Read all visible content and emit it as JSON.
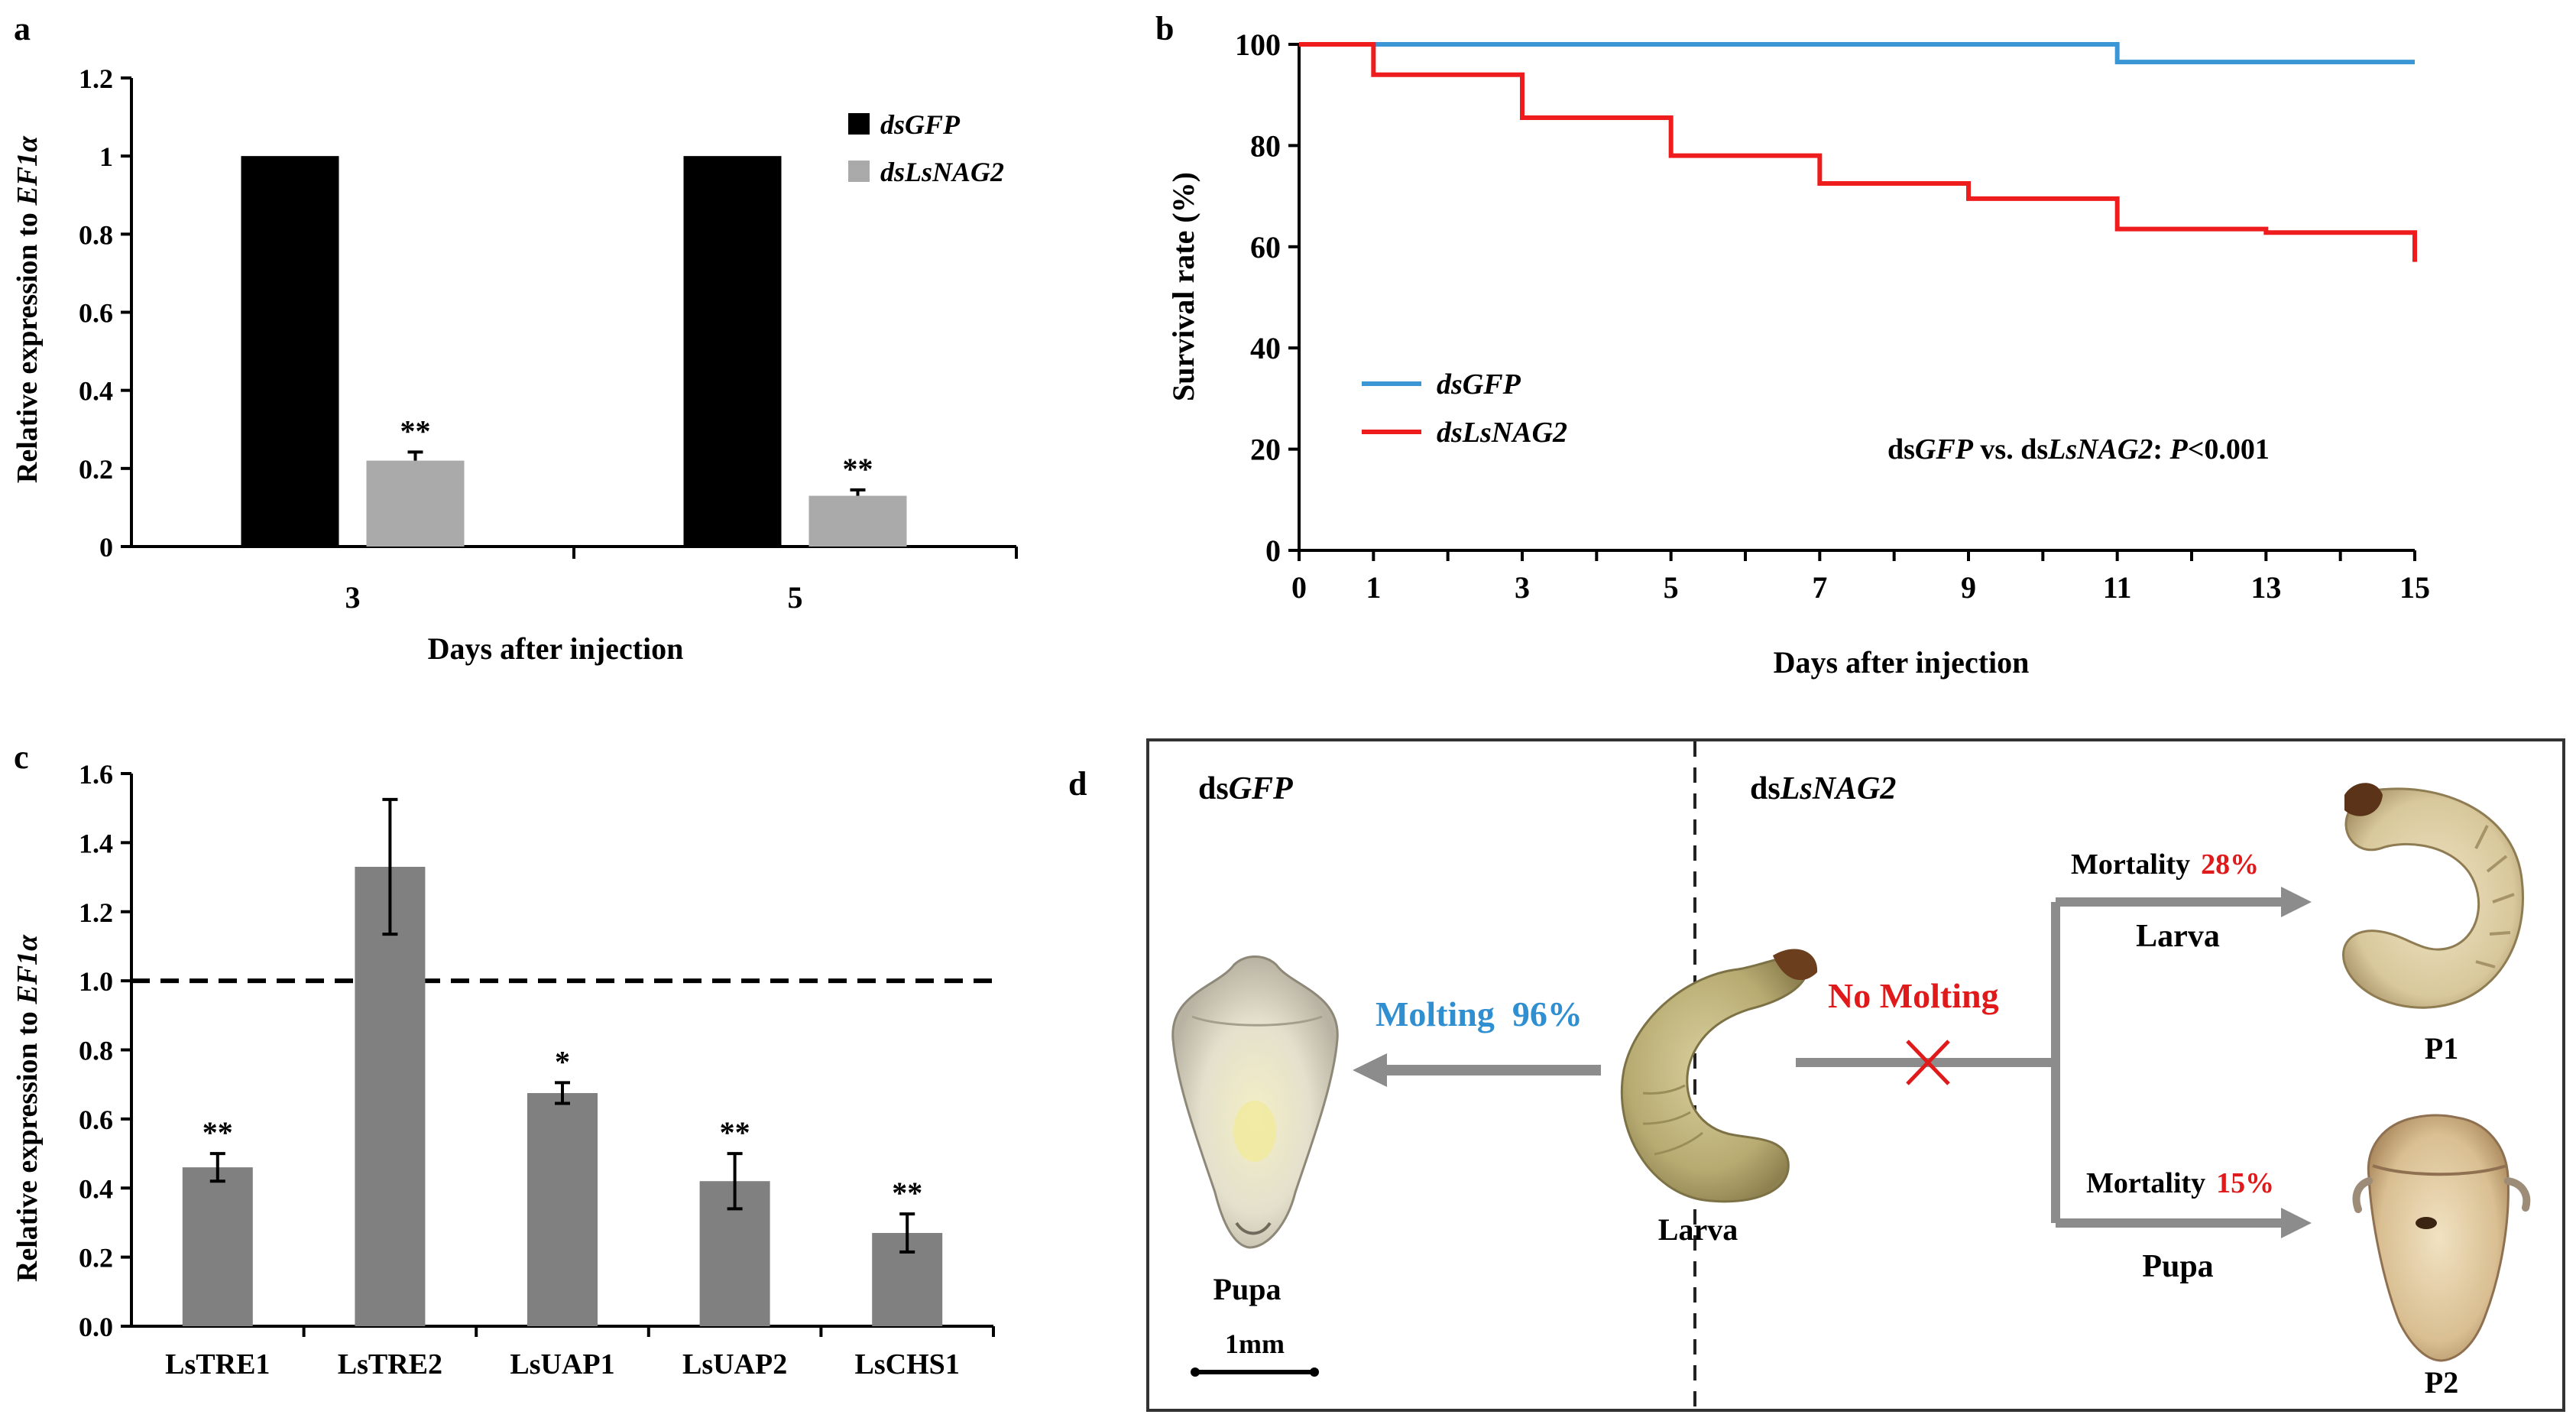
{
  "chart_data": [
    {
      "panel": "a",
      "type": "bar",
      "title": "",
      "xlabel": "Days after injection",
      "ylabel_prefix": "Relative expression to ",
      "ylabel_gene": "EF1α",
      "ylim": [
        0,
        1.2
      ],
      "yticks": [
        "0",
        "0.2",
        "0.4",
        "0.6",
        "0.8",
        "1",
        "1.2"
      ],
      "categories": [
        "3",
        "5"
      ],
      "series": [
        {
          "name": "dsGFP",
          "color": "#000000",
          "values": [
            1.0,
            1.0
          ],
          "errors": [
            0,
            0
          ],
          "sig": [
            "",
            ""
          ]
        },
        {
          "name": "dsLsNAG2",
          "color": "#aaaaaa",
          "values": [
            0.22,
            0.13
          ],
          "errors": [
            0.022,
            0.015
          ],
          "sig": [
            "**",
            "**"
          ]
        }
      ],
      "legend": [
        "dsGFP",
        "dsLsNAG2"
      ]
    },
    {
      "panel": "b",
      "type": "line",
      "xlabel": "Days after injection",
      "ylabel": "Survival rate (%)",
      "xlim": [
        0,
        15
      ],
      "ylim": [
        0,
        100
      ],
      "xticks": [
        "0",
        "1",
        "3",
        "5",
        "7",
        "9",
        "11",
        "13",
        "15"
      ],
      "yticks": [
        "0",
        "20",
        "40",
        "60",
        "80",
        "100"
      ],
      "series": [
        {
          "name": "dsGFP",
          "color": "#3b96d6",
          "points": [
            [
              0,
              100
            ],
            [
              11,
              100
            ],
            [
              11,
              96.5
            ],
            [
              15,
              96.5
            ]
          ]
        },
        {
          "name": "dsLsNAG2",
          "color": "#ee1c1c",
          "points": [
            [
              0,
              100
            ],
            [
              1,
              100
            ],
            [
              1,
              94
            ],
            [
              3,
              94
            ],
            [
              3,
              85.5
            ],
            [
              5,
              85.5
            ],
            [
              5,
              78
            ],
            [
              7,
              78
            ],
            [
              7,
              72.5
            ],
            [
              9,
              72.5
            ],
            [
              9,
              69.5
            ],
            [
              11,
              69.5
            ],
            [
              11,
              63.5
            ],
            [
              13,
              63.5
            ],
            [
              13,
              62.8
            ],
            [
              15,
              62.8
            ],
            [
              15,
              57
            ]
          ]
        }
      ],
      "annotation": {
        "p1": "ds",
        "p2": "GFP",
        "p3": " vs. ds",
        "p4": "LsNAG2",
        "p5": ": ",
        "p6": "P",
        "p7": "<0.001"
      }
    },
    {
      "panel": "c",
      "type": "bar",
      "xlabel": "",
      "ylabel_prefix": "Relative expression to ",
      "ylabel_gene": "EF1α",
      "ylim": [
        0,
        1.6
      ],
      "yticks": [
        "0.0",
        "0.2",
        "0.4",
        "0.6",
        "0.8",
        "1.0",
        "1.2",
        "1.4",
        "1.6"
      ],
      "reference_line": 1.0,
      "color": "#808080",
      "categories": [
        "LsTRE1",
        "LsTRE2",
        "LsUAP1",
        "LsUAP2",
        "LsCHS1"
      ],
      "values": [
        0.46,
        1.33,
        0.675,
        0.42,
        0.27
      ],
      "errors": [
        0.04,
        0.195,
        0.03,
        0.08,
        0.055
      ],
      "sig": [
        "**",
        "",
        "*",
        "**",
        "**"
      ]
    }
  ],
  "panel_labels": {
    "a": "a",
    "b": "b",
    "c": "c",
    "d": "d"
  },
  "diagram": {
    "left_header_pre": "ds",
    "left_header_gene": "GFP",
    "right_header_pre": "ds",
    "right_header_gene": "LsNAG2",
    "molting_label": "Molting  96%",
    "no_molting_label": "No Molting",
    "pupa_label": "Pupa",
    "larva_label": "Larva",
    "mortality_top_label": "Mortality",
    "mortality_top_value": "28%",
    "mortality_bottom_label": "Mortality",
    "mortality_bottom_value": "15%",
    "branch_top_label": "Larva",
    "branch_bottom_label": "Pupa",
    "p1_label": "P1",
    "p2_label": "P2",
    "scale_label": "1mm",
    "colors": {
      "molting": "#2f8fd0",
      "no_molting": "#e0191a",
      "arrow": "#8c8c8c",
      "mortality_value": "#e0191a"
    }
  }
}
